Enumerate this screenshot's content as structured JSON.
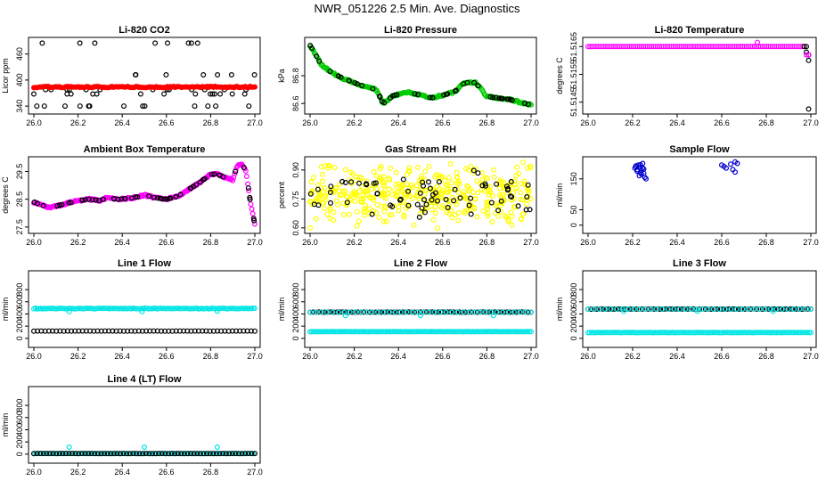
{
  "page": {
    "title": "NWR_051226  2.5 Min. Ave. Diagnostics"
  },
  "colors": {
    "red": "#ff0000",
    "green": "#00cc00",
    "magenta": "#ff00ff",
    "blue": "#0000cc",
    "cyan": "#00e5e5",
    "yellow": "#ffff00",
    "black": "#000000"
  },
  "chart_data": [
    {
      "id": "co2",
      "type": "scatter",
      "title": "Li-820 CO2",
      "ylabel": "Licor ppm",
      "xlim": [
        26.0,
        27.0
      ],
      "xticks": [
        26.0,
        26.2,
        26.4,
        26.6,
        26.8,
        27.0
      ],
      "ylim": [
        330,
        490
      ],
      "yticks": [
        "340",
        "400",
        "460"
      ],
      "series": [
        {
          "name": "levels",
          "color": "black",
          "open": true,
          "kind": "levels",
          "levels": [
            340,
            368,
            378,
            412,
            485
          ],
          "n": 55
        },
        {
          "name": "co2",
          "color": "red",
          "open": false,
          "kind": "flat",
          "value": 384,
          "jitter": 1.5,
          "n": 140,
          "x0": 26.0,
          "x1": 27.0
        }
      ]
    },
    {
      "id": "pressure",
      "type": "line",
      "title": "Li-820 Pressure",
      "ylabel": "kPa",
      "xlim": [
        26.0,
        27.0
      ],
      "xticks": [
        26.0,
        26.2,
        26.4,
        26.6,
        26.8,
        27.0
      ],
      "ylim": [
        86.55,
        87.05
      ],
      "yticks": [
        "86.6",
        "86.8"
      ],
      "series": [
        {
          "name": "pressure",
          "color": "green",
          "open": true,
          "kind": "path",
          "n": 200,
          "x": [
            26.0,
            26.05,
            26.1,
            26.15,
            26.2,
            26.25,
            26.3,
            26.33,
            26.38,
            26.45,
            26.5,
            26.55,
            26.6,
            26.65,
            26.7,
            26.75,
            26.8,
            26.85,
            26.9,
            26.95,
            27.0
          ],
          "y": [
            87.02,
            86.88,
            86.82,
            86.78,
            86.75,
            86.72,
            86.7,
            86.6,
            86.66,
            86.68,
            86.66,
            86.64,
            86.66,
            86.68,
            86.75,
            86.75,
            86.65,
            86.64,
            86.63,
            86.61,
            86.59
          ]
        },
        {
          "name": "pressure-black",
          "color": "black",
          "open": true,
          "kind": "sample",
          "n": 50
        }
      ]
    },
    {
      "id": "temp820",
      "type": "scatter",
      "title": "Li-820 Temperature",
      "ylabel": "degrees C",
      "xlim": [
        26.0,
        27.0
      ],
      "xticks": [
        26.0,
        26.2,
        26.4,
        26.6,
        26.8,
        27.0
      ],
      "ylim": [
        51.5142,
        51.5167
      ],
      "yticks": [
        "51.5145",
        "51.5155",
        "51.5165"
      ],
      "series": [
        {
          "name": "temp",
          "color": "magenta",
          "open": true,
          "kind": "flat",
          "value": 51.5165,
          "jitter": 0,
          "n": 110,
          "x0": 26.0,
          "x1": 26.97
        },
        {
          "name": "temp-black",
          "color": "black",
          "open": true,
          "kind": "points",
          "x": [
            26.97,
            26.98,
            26.99,
            26.99,
            26.98,
            26.99
          ],
          "y": [
            51.5165,
            51.5165,
            51.5162,
            51.516,
            51.5163,
            51.51425
          ]
        },
        {
          "name": "temp-magenta-extra",
          "color": "magenta",
          "open": true,
          "kind": "points",
          "x": [
            26.76,
            26.98,
            26.99
          ],
          "y": [
            51.51665,
            51.5162,
            51.5162
          ]
        }
      ]
    },
    {
      "id": "boxtemp",
      "type": "line",
      "title": "Ambient Box Temperature",
      "ylabel": "degrees C",
      "xlim": [
        26.0,
        27.0
      ],
      "xticks": [
        26.0,
        26.2,
        26.4,
        26.6,
        26.8,
        27.0
      ],
      "ylim": [
        27.4,
        29.9
      ],
      "yticks": [
        "27.5",
        "28.5",
        "29.5"
      ],
      "series": [
        {
          "name": "temp",
          "color": "magenta",
          "open": true,
          "kind": "path",
          "n": 220,
          "x": [
            26.0,
            26.03,
            26.07,
            26.1,
            26.15,
            26.2,
            26.25,
            26.3,
            26.33,
            26.38,
            26.45,
            26.5,
            26.55,
            26.6,
            26.65,
            26.7,
            26.75,
            26.8,
            26.83,
            26.86,
            26.9,
            26.92,
            26.94,
            26.96,
            26.98,
            27.0
          ],
          "y": [
            28.4,
            28.3,
            28.2,
            28.25,
            28.35,
            28.45,
            28.5,
            28.45,
            28.55,
            28.5,
            28.55,
            28.65,
            28.55,
            28.5,
            28.6,
            28.85,
            29.1,
            29.4,
            29.4,
            29.3,
            29.2,
            29.7,
            29.8,
            29.5,
            28.4,
            27.6
          ]
        },
        {
          "name": "temp-black",
          "color": "black",
          "open": true,
          "kind": "sample",
          "n": 60
        }
      ]
    },
    {
      "id": "rh",
      "type": "scatter",
      "title": "Gas Stream RH",
      "ylabel": "percent",
      "xlim": [
        26.0,
        27.0
      ],
      "xticks": [
        26.0,
        26.2,
        26.4,
        26.6,
        26.8,
        27.0
      ],
      "ylim": [
        0.59,
        0.95
      ],
      "yticks": [
        "0.60",
        "0.75",
        "0.90"
      ],
      "series": [
        {
          "name": "rh",
          "color": "yellow",
          "open": true,
          "kind": "noise",
          "lo": 0.61,
          "hi": 0.93,
          "n": 420,
          "seed": 11
        },
        {
          "name": "rh-black",
          "color": "black",
          "open": true,
          "kind": "noise",
          "lo": 0.64,
          "hi": 0.9,
          "n": 70,
          "seed": 5
        }
      ]
    },
    {
      "id": "sampleflow",
      "type": "scatter",
      "title": "Sample Flow",
      "ylabel": "ml/min",
      "xlim": [
        26.0,
        27.0
      ],
      "xticks": [
        26.0,
        26.2,
        26.4,
        26.6,
        26.8,
        27.0
      ],
      "ylim": [
        -15,
        210
      ],
      "yticks": [
        "0",
        "50",
        "150"
      ],
      "series": [
        {
          "name": "sample",
          "color": "blue",
          "open": true,
          "kind": "points",
          "x": [
            26.21,
            26.215,
            26.22,
            26.225,
            26.23,
            26.22,
            26.235,
            26.24,
            26.245,
            26.25,
            26.24,
            26.23,
            26.25,
            26.255,
            26.26,
            26.215,
            26.235,
            26.245,
            26.6,
            26.62,
            26.61,
            26.66,
            26.65,
            26.66,
            26.64,
            26.67
          ],
          "y": [
            185,
            190,
            180,
            195,
            188,
            175,
            170,
            178,
            200,
            168,
            165,
            160,
            182,
            155,
            150,
            192,
            196,
            185,
            195,
            185,
            190,
            205,
            180,
            172,
            198,
            200
          ]
        }
      ]
    },
    {
      "id": "line1",
      "type": "scatter",
      "title": "Line 1 Flow",
      "ylabel": "ml/min",
      "xlim": [
        26.0,
        27.0
      ],
      "xticks": [
        26.0,
        26.2,
        26.4,
        26.6,
        26.8,
        27.0
      ],
      "ylim": [
        -90,
        1050
      ],
      "yticks": [
        "0",
        "200",
        "400",
        "600",
        "800"
      ],
      "series": [
        {
          "name": "line1-cyan",
          "color": "cyan",
          "open": true,
          "kind": "flat",
          "value": 490,
          "jitter": 6,
          "n": 130,
          "x0": 26.0,
          "x1": 27.0
        },
        {
          "name": "line1-black",
          "color": "black",
          "open": true,
          "kind": "flat",
          "value": 120,
          "jitter": 1,
          "n": 60,
          "x0": 26.0,
          "x1": 27.0
        },
        {
          "name": "line1-cyan-out",
          "color": "cyan",
          "open": true,
          "kind": "points",
          "x": [
            26.16,
            26.49,
            26.83
          ],
          "y": [
            440,
            440,
            445
          ]
        }
      ]
    },
    {
      "id": "line2",
      "type": "scatter",
      "title": "Line 2 Flow",
      "ylabel": "ml/min",
      "xlim": [
        26.0,
        27.0
      ],
      "xticks": [
        26.0,
        26.2,
        26.4,
        26.6,
        26.8,
        27.0
      ],
      "ylim": [
        -90,
        1050
      ],
      "yticks": [
        "0",
        "200",
        "400",
        "600",
        "800"
      ],
      "series": [
        {
          "name": "line2-cyan",
          "color": "cyan",
          "open": true,
          "kind": "flat",
          "value": 110,
          "jitter": 2,
          "n": 130,
          "x0": 26.0,
          "x1": 27.0
        },
        {
          "name": "line2-black",
          "color": "black",
          "open": true,
          "kind": "flat",
          "value": 430,
          "jitter": 2,
          "n": 75,
          "x0": 26.0,
          "x1": 27.0
        },
        {
          "name": "line2-cyan-top",
          "color": "cyan",
          "open": true,
          "kind": "flat",
          "value": 430,
          "jitter": 2,
          "n": 40,
          "x0": 26.0,
          "x1": 27.0
        },
        {
          "name": "line2-cyan-out",
          "color": "cyan",
          "open": true,
          "kind": "points",
          "x": [
            26.16,
            26.5,
            26.83
          ],
          "y": [
            375,
            375,
            375
          ]
        }
      ]
    },
    {
      "id": "line3",
      "type": "scatter",
      "title": "Line 3 Flow",
      "ylabel": "ml/min",
      "xlim": [
        26.0,
        27.0
      ],
      "xticks": [
        26.0,
        26.2,
        26.4,
        26.6,
        26.8,
        27.0
      ],
      "ylim": [
        -90,
        1050
      ],
      "yticks": [
        "0",
        "200",
        "400",
        "600",
        "800"
      ],
      "series": [
        {
          "name": "line3-cyan",
          "color": "cyan",
          "open": true,
          "kind": "flat",
          "value": 95,
          "jitter": 2,
          "n": 130,
          "x0": 26.0,
          "x1": 27.0
        },
        {
          "name": "line3-black",
          "color": "black",
          "open": true,
          "kind": "flat",
          "value": 480,
          "jitter": 2,
          "n": 75,
          "x0": 26.0,
          "x1": 27.0
        },
        {
          "name": "line3-cyan-top",
          "color": "cyan",
          "open": true,
          "kind": "flat",
          "value": 480,
          "jitter": 2,
          "n": 40,
          "x0": 26.0,
          "x1": 27.0
        },
        {
          "name": "line3-cyan-out",
          "color": "cyan",
          "open": true,
          "kind": "points",
          "x": [
            26.16,
            26.49,
            26.83
          ],
          "y": [
            445,
            445,
            445
          ]
        }
      ]
    },
    {
      "id": "line4",
      "type": "scatter",
      "title": "Line 4 (LT) Flow",
      "ylabel": "ml/min",
      "xlim": [
        26.0,
        27.0
      ],
      "xticks": [
        26.0,
        26.2,
        26.4,
        26.6,
        26.8,
        27.0
      ],
      "ylim": [
        -90,
        1050
      ],
      "yticks": [
        "0",
        "200",
        "400",
        "600",
        "800"
      ],
      "series": [
        {
          "name": "line4-cyan",
          "color": "cyan",
          "open": true,
          "kind": "flat",
          "value": 10,
          "jitter": 1,
          "n": 120,
          "x0": 26.0,
          "x1": 27.0
        },
        {
          "name": "line4-black",
          "color": "black",
          "open": true,
          "kind": "flat",
          "value": 10,
          "jitter": 1,
          "n": 70,
          "x0": 26.0,
          "x1": 27.0
        },
        {
          "name": "line4-cyan-out",
          "color": "cyan",
          "open": true,
          "kind": "points",
          "x": [
            26.16,
            26.5,
            26.83
          ],
          "y": [
            115,
            115,
            115
          ]
        }
      ]
    }
  ]
}
